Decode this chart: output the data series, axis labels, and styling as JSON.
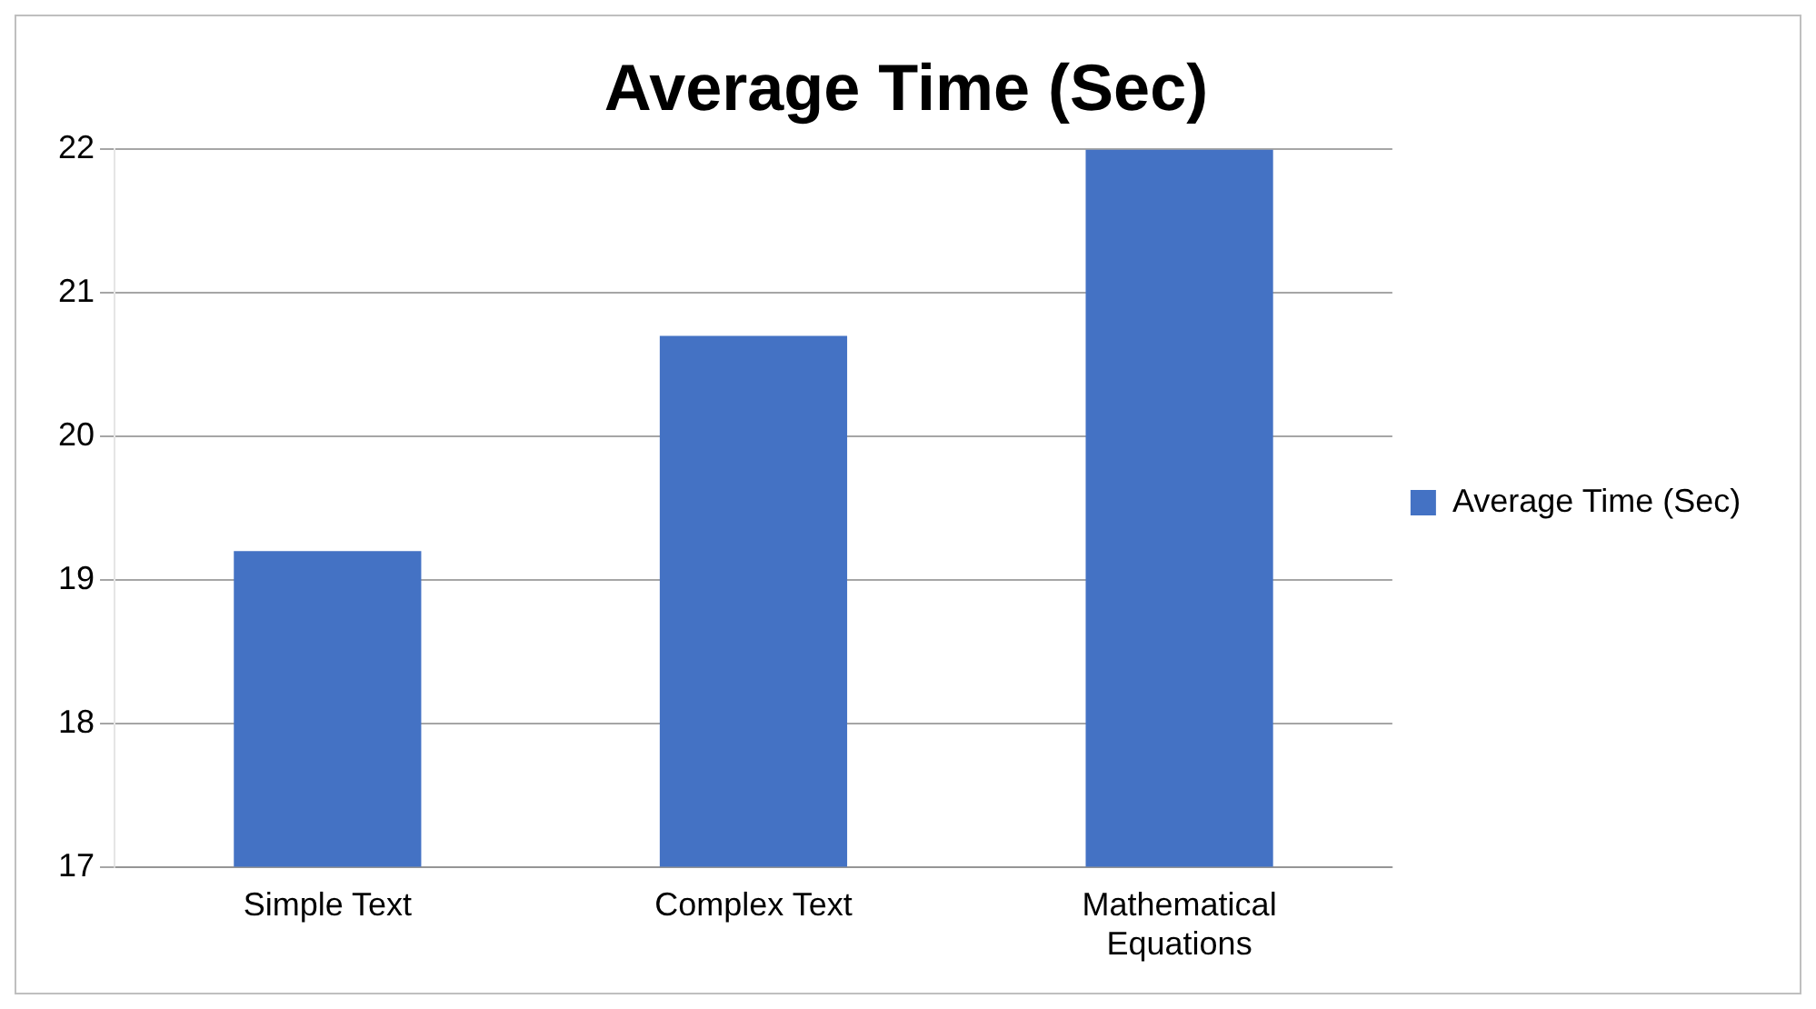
{
  "chart_data": {
    "type": "bar",
    "title": "Average Time (Sec)",
    "categories": [
      "Simple Text",
      "Complex Text",
      "Mathematical Equations"
    ],
    "series": [
      {
        "name": "Average Time (Sec)",
        "color": "#4472c4",
        "values": [
          19.2,
          20.7,
          22.0
        ]
      }
    ],
    "ylim": [
      17,
      22
    ],
    "yticks": [
      17,
      18,
      19,
      20,
      21,
      22
    ],
    "grid": "y",
    "legend": "right"
  }
}
